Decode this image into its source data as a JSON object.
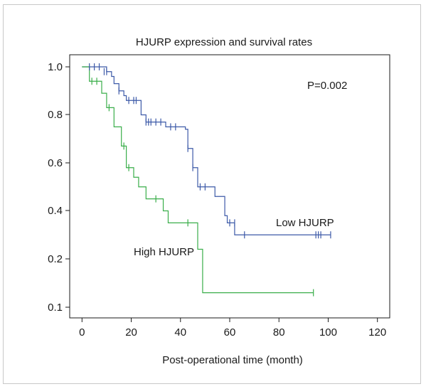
{
  "chart_data": {
    "type": "line",
    "subtype": "kaplan-meier step curve",
    "title": "HJURP expression and survival rates",
    "xlabel": "Post-operational time (month)",
    "ylabel": "",
    "xlim": [
      -5,
      125
    ],
    "x_ticks": [
      0,
      20,
      40,
      60,
      80,
      100,
      120
    ],
    "y_ticks": [
      1.0,
      0.8,
      0.6,
      0.4,
      0.2,
      0.1
    ],
    "y_tick_labels": [
      "1.0",
      "0.8",
      "0.6",
      "0.4",
      "0.2",
      "0.1"
    ],
    "grid": false,
    "legend": "none",
    "annotations": [
      {
        "text": "P=0.002"
      },
      {
        "text": "Low HJURP",
        "series": "Low HJURP"
      },
      {
        "text": "High HJURP",
        "series": "High HJURP"
      }
    ],
    "series": [
      {
        "name": "Low HJURP",
        "color": "#3d5aa8",
        "steps": [
          [
            0,
            1.0
          ],
          [
            10,
            0.98
          ],
          [
            12,
            0.96
          ],
          [
            13,
            0.93
          ],
          [
            15,
            0.9
          ],
          [
            17,
            0.88
          ],
          [
            18,
            0.86
          ],
          [
            24,
            0.8
          ],
          [
            26,
            0.77
          ],
          [
            34,
            0.75
          ],
          [
            42,
            0.74
          ],
          [
            43,
            0.66
          ],
          [
            45,
            0.58
          ],
          [
            47,
            0.5
          ],
          [
            52,
            0.5
          ],
          [
            54,
            0.46
          ],
          [
            58,
            0.38
          ],
          [
            59,
            0.35
          ],
          [
            62,
            0.3
          ],
          [
            101,
            0.3
          ]
        ],
        "censored": [
          [
            3,
            1.0
          ],
          [
            5,
            1.0
          ],
          [
            7,
            1.0
          ],
          [
            9,
            0.98
          ],
          [
            10,
            0.98
          ],
          [
            15,
            0.9
          ],
          [
            19,
            0.86
          ],
          [
            21,
            0.86
          ],
          [
            22,
            0.86
          ],
          [
            26,
            0.77
          ],
          [
            27,
            0.77
          ],
          [
            28,
            0.77
          ],
          [
            30,
            0.77
          ],
          [
            32,
            0.77
          ],
          [
            36,
            0.75
          ],
          [
            38,
            0.75
          ],
          [
            43,
            0.66
          ],
          [
            45,
            0.58
          ],
          [
            48,
            0.5
          ],
          [
            50,
            0.5
          ],
          [
            60,
            0.35
          ],
          [
            62,
            0.35
          ],
          [
            66,
            0.3
          ],
          [
            95,
            0.3
          ],
          [
            96,
            0.3
          ],
          [
            97,
            0.3
          ],
          [
            101,
            0.3
          ]
        ]
      },
      {
        "name": "High HJURP",
        "color": "#3aae4a",
        "steps": [
          [
            0,
            1.0
          ],
          [
            3,
            0.94
          ],
          [
            8,
            0.89
          ],
          [
            10,
            0.83
          ],
          [
            13,
            0.75
          ],
          [
            16,
            0.67
          ],
          [
            18,
            0.58
          ],
          [
            21,
            0.54
          ],
          [
            23,
            0.5
          ],
          [
            26,
            0.45
          ],
          [
            33,
            0.4
          ],
          [
            35,
            0.35
          ],
          [
            47,
            0.24
          ],
          [
            49,
            0.13
          ],
          [
            94,
            0.13
          ]
        ],
        "censored": [
          [
            4,
            0.94
          ],
          [
            6,
            0.94
          ],
          [
            11,
            0.83
          ],
          [
            17,
            0.67
          ],
          [
            19,
            0.58
          ],
          [
            30,
            0.45
          ],
          [
            43,
            0.35
          ],
          [
            94,
            0.13
          ]
        ]
      }
    ]
  }
}
